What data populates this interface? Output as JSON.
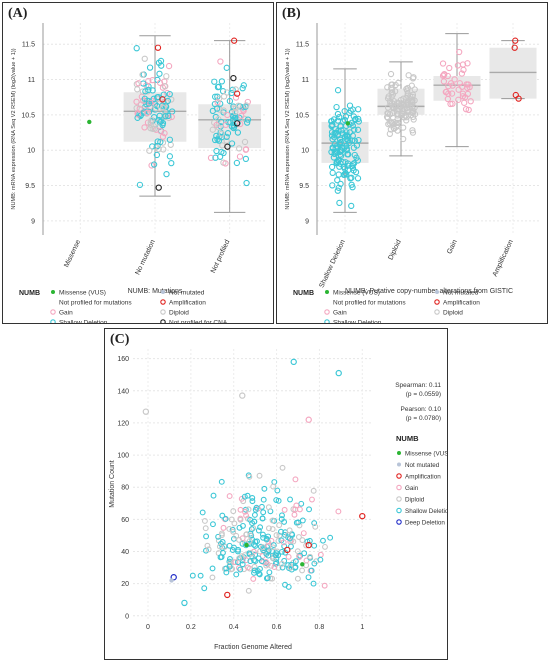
{
  "panels": [
    {
      "label": "(A)",
      "chart_data": {
        "type": "box-jitter",
        "ylabel": "NUMB: mRNA expression (RNA Seq V2 RSEM) (log2(value + 1))",
        "xlabel": "NUMB: Mutations",
        "categories": [
          "Missense",
          "No mutation",
          "Not profiled"
        ],
        "ylim": [
          8.8,
          11.8
        ],
        "yticks": [
          "9",
          "9.5",
          "10",
          "10.5",
          "11",
          "11.5"
        ],
        "boxes": [
          null,
          {
            "min": 9.35,
            "q1": 10.12,
            "median": 10.55,
            "q3": 10.82,
            "max": 11.62
          },
          {
            "min": 9.12,
            "q1": 10.03,
            "median": 10.43,
            "q3": 10.65,
            "max": 11.55
          }
        ],
        "legend_title": "NUMB",
        "legend": [
          {
            "label": "Missense (VUS)",
            "color": "#2bb533",
            "style": "dot"
          },
          {
            "label": "Not mutated",
            "color": "#b8c4d8",
            "style": "dot"
          },
          {
            "label": "Not profiled for mutations",
            "color": "#ffffff",
            "style": "none"
          },
          {
            "label": "Amplification",
            "color": "#e0221f",
            "style": "ring"
          },
          {
            "label": "Gain",
            "color": "#f4a7c0",
            "style": "ring"
          },
          {
            "label": "Diploid",
            "color": "#c8c8c8",
            "style": "ring"
          },
          {
            "label": "Shallow Deletion",
            "color": "#3cc7d6",
            "style": "ring"
          },
          {
            "label": "Not profiled for CNA",
            "color": "#222222",
            "style": "ring"
          }
        ]
      }
    },
    {
      "label": "(B)",
      "chart_data": {
        "type": "box-jitter",
        "ylabel": "NUMB: mRNA expression (RNA Seq V2 RSEM) (log2(value + 1))",
        "xlabel": "NUMB: Putative copy-number alterations from GISTIC",
        "categories": [
          "Shallow Deletion",
          "Diploid",
          "Gain",
          "Amplification"
        ],
        "ylim": [
          8.8,
          11.8
        ],
        "yticks": [
          "9",
          "9.5",
          "10",
          "10.5",
          "11",
          "11.5"
        ],
        "boxes": [
          {
            "min": 9.12,
            "q1": 9.82,
            "median": 10.1,
            "q3": 10.4,
            "max": 11.15
          },
          {
            "min": 9.92,
            "q1": 10.5,
            "median": 10.62,
            "q3": 10.87,
            "max": 11.25
          },
          {
            "min": 10.05,
            "q1": 10.7,
            "median": 10.92,
            "q3": 11.05,
            "max": 11.65
          },
          {
            "min": 10.73,
            "q1": 10.73,
            "median": 11.1,
            "q3": 11.45,
            "max": 11.55
          }
        ],
        "legend_title": "NUMB",
        "legend": [
          {
            "label": "Missense (VUS)",
            "color": "#2bb533",
            "style": "dot"
          },
          {
            "label": "Not mutated",
            "color": "#b8c4d8",
            "style": "dot"
          },
          {
            "label": "Not profiled for mutations",
            "color": "#ffffff",
            "style": "none"
          },
          {
            "label": "Amplification",
            "color": "#e0221f",
            "style": "ring"
          },
          {
            "label": "Gain",
            "color": "#f4a7c0",
            "style": "ring"
          },
          {
            "label": "Diploid",
            "color": "#c8c8c8",
            "style": "ring"
          },
          {
            "label": "Shallow Deletion",
            "color": "#3cc7d6",
            "style": "ring"
          }
        ]
      }
    }
  ],
  "panelC": {
    "label": "(C)",
    "chart_data": {
      "type": "scatter",
      "xlabel": "Fraction Genome Altered",
      "ylabel": "Mutation Count",
      "xlim": [
        -0.07,
        1.05
      ],
      "ylim": [
        -2,
        166
      ],
      "xticks": [
        "0",
        "0.2",
        "0.4",
        "0.6",
        "0.8",
        "1"
      ],
      "yticks": [
        "0",
        "20",
        "40",
        "60",
        "80",
        "100",
        "120",
        "140",
        "160"
      ],
      "stats": [
        "Spearman: 0.11",
        "(p = 0.0559)",
        "Pearson: 0.10",
        "(p = 0.0780)"
      ],
      "legend_title": "NUMB",
      "legend": [
        {
          "label": "Missense (VUS)",
          "color": "#2bb533",
          "style": "dot"
        },
        {
          "label": "Not mutated",
          "color": "#b8c4d8",
          "style": "dot"
        },
        {
          "label": "Amplification",
          "color": "#e0221f",
          "style": "ring"
        },
        {
          "label": "Gain",
          "color": "#f4a7c0",
          "style": "ring"
        },
        {
          "label": "Diploid",
          "color": "#c8c8c8",
          "style": "ring"
        },
        {
          "label": "Shallow Deletion",
          "color": "#3cc7d6",
          "style": "ring"
        },
        {
          "label": "Deep Deletion",
          "color": "#1f2bc7",
          "style": "ring"
        }
      ],
      "highlight_points": [
        {
          "x": -0.01,
          "y": 127,
          "cat": "Diploid"
        },
        {
          "x": 0.12,
          "y": 24,
          "cat": "Deep Deletion"
        },
        {
          "x": 0.11,
          "y": 22,
          "cat": "Not mutated"
        },
        {
          "x": 0.37,
          "y": 13,
          "cat": "Amplification"
        },
        {
          "x": 0.65,
          "y": 41,
          "cat": "Amplification"
        },
        {
          "x": 0.75,
          "y": 44,
          "cat": "Amplification"
        },
        {
          "x": 1.0,
          "y": 62,
          "cat": "Amplification"
        },
        {
          "x": 0.46,
          "y": 44,
          "cat": "Missense (VUS)"
        },
        {
          "x": 0.72,
          "y": 32,
          "cat": "Missense (VUS)"
        },
        {
          "x": 0.68,
          "y": 158,
          "cat": "Shallow Deletion"
        },
        {
          "x": 0.89,
          "y": 151,
          "cat": "Shallow Deletion"
        },
        {
          "x": 0.44,
          "y": 137,
          "cat": "Diploid"
        },
        {
          "x": 0.75,
          "y": 122,
          "cat": "Gain"
        },
        {
          "x": 0.17,
          "y": 8,
          "cat": "Shallow Deletion"
        }
      ]
    }
  }
}
